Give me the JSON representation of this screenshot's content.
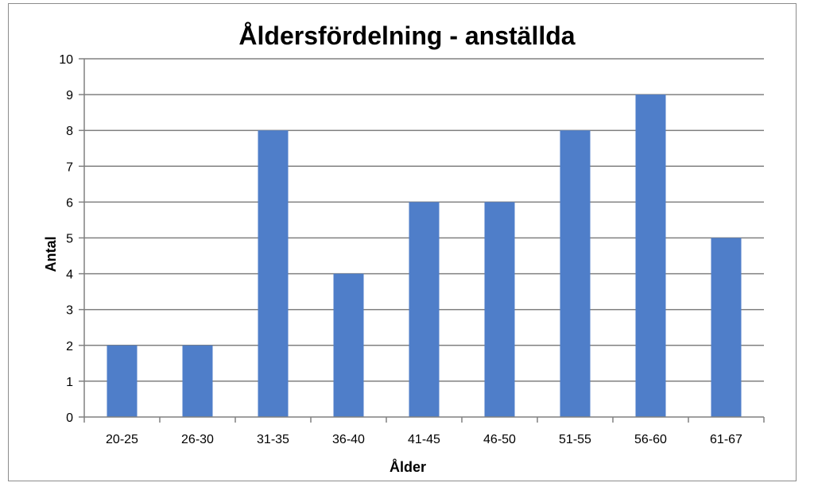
{
  "chart_data": {
    "type": "bar",
    "title": "Åldersfördelning - anställda",
    "xlabel": "Ålder",
    "ylabel": "Antal",
    "categories": [
      "20-25",
      "26-30",
      "31-35",
      "36-40",
      "41-45",
      "46-50",
      "51-55",
      "56-60",
      "61-67"
    ],
    "values": [
      2,
      2,
      8,
      4,
      6,
      6,
      8,
      9,
      5
    ],
    "ylim": [
      0,
      10
    ],
    "yticks": [
      "0",
      "1",
      "2",
      "3",
      "4",
      "5",
      "6",
      "7",
      "8",
      "9",
      "10"
    ],
    "grid": true,
    "legend": "none",
    "bar_color": "#4f7ec9",
    "grid_color": "#808080"
  }
}
